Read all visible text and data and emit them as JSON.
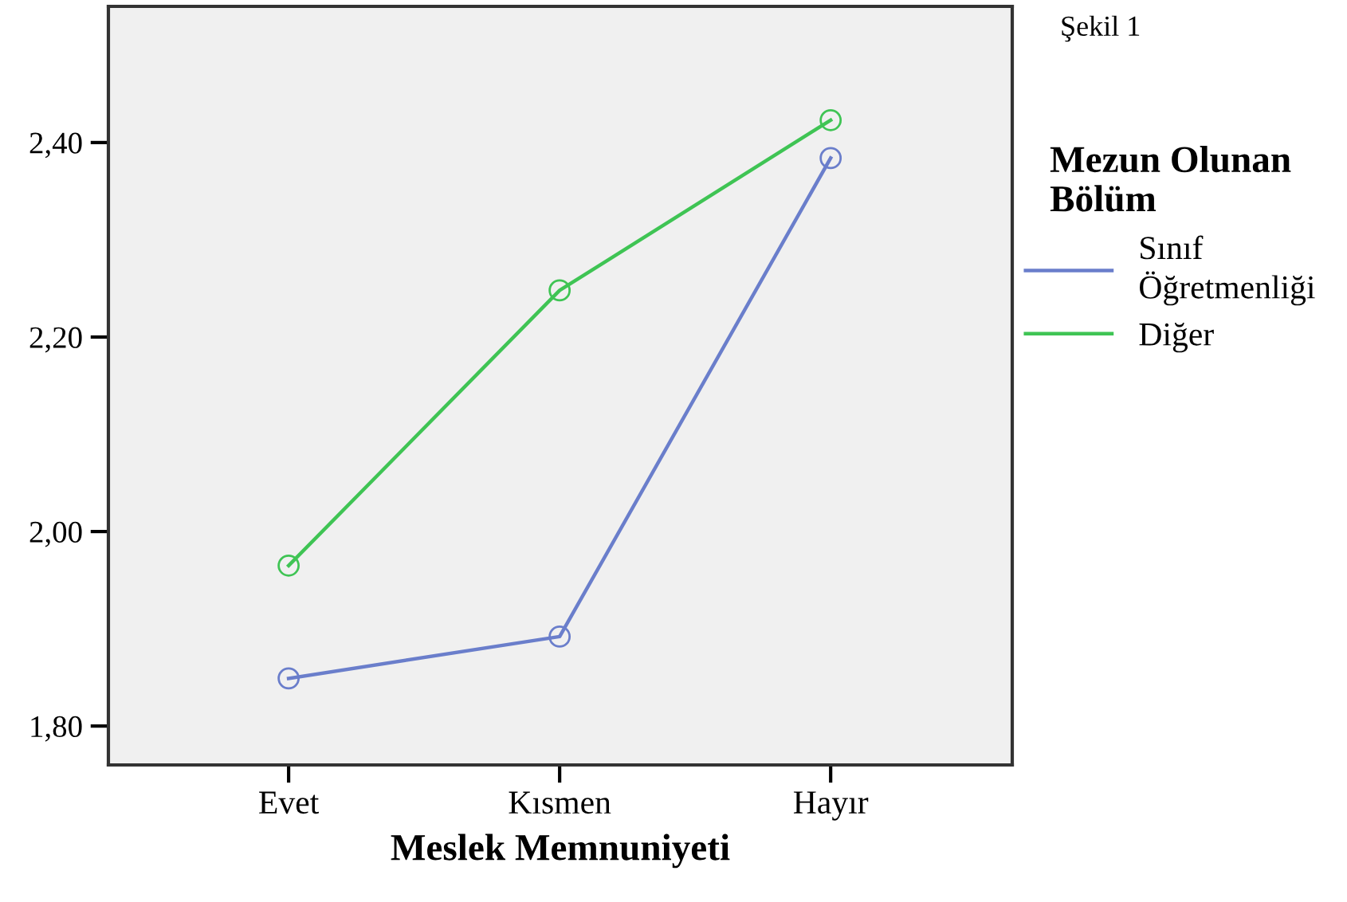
{
  "chart_data": {
    "type": "line",
    "xlabel": "Meslek Memnuniyeti",
    "categories": [
      "Evet",
      "Kısmen",
      "Hayır"
    ],
    "series": [
      {
        "name": "Sınıf\nÖğretmenliği",
        "color": "#6a7ecb",
        "values": [
          1.849,
          1.892,
          2.384
        ]
      },
      {
        "name": "Diğer",
        "color": "#3fc454",
        "values": [
          1.965,
          2.248,
          2.423
        ]
      }
    ],
    "ylim": [
      1.76,
      2.54
    ],
    "yticks": [
      {
        "value": 1.8,
        "label": "1,80"
      },
      {
        "value": 2.0,
        "label": "2,00"
      },
      {
        "value": 2.2,
        "label": "2,20"
      },
      {
        "value": 2.4,
        "label": "2,40"
      }
    ],
    "legend": "right",
    "legend_title": "Mezun Olunan\nBölüm",
    "marker": "circle",
    "line_style": "solid",
    "grid": false,
    "annotations": [
      "Şekil 1"
    ]
  }
}
